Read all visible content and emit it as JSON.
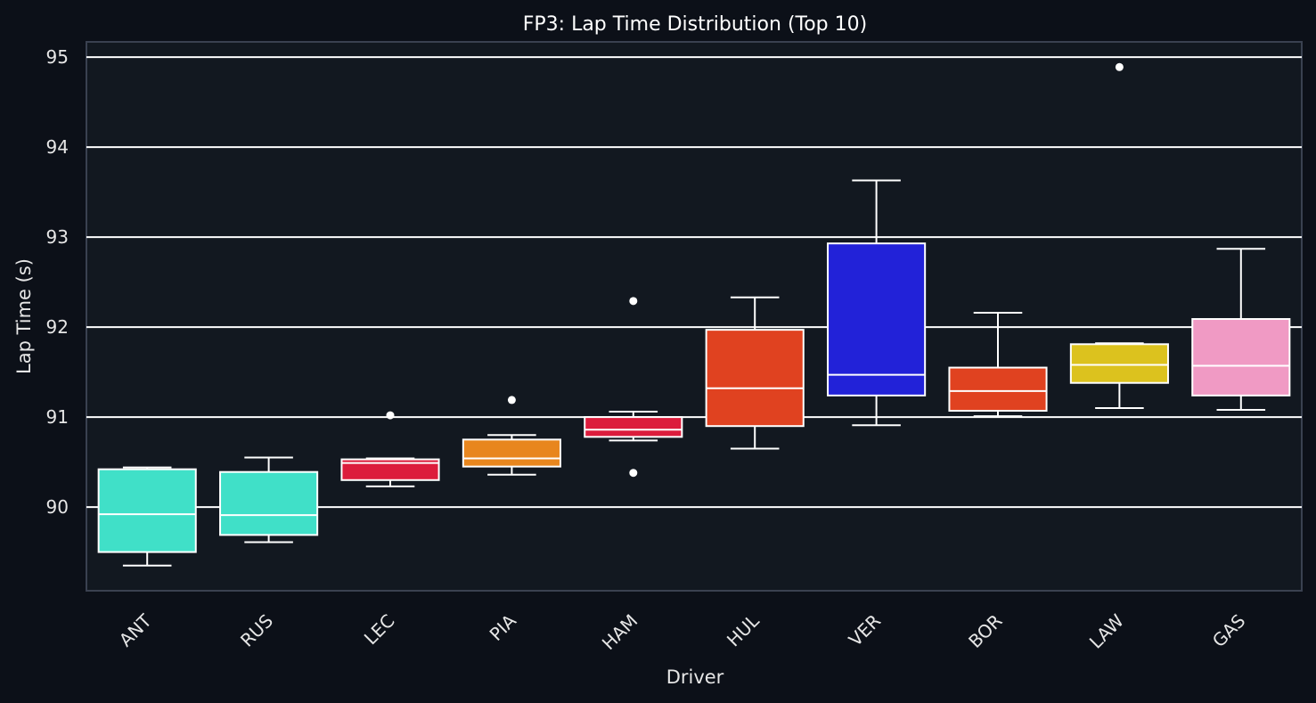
{
  "chart_data": {
    "type": "boxplot",
    "title": "FP3: Lap Time Distribution (Top 10)",
    "xlabel": "Driver",
    "ylabel": "Lap Time (s)",
    "ylim": [
      89.07,
      95.17
    ],
    "yticks": [
      90,
      91,
      92,
      93,
      94,
      95
    ],
    "grid": "horizontal",
    "categories": [
      "ANT",
      "RUS",
      "LEC",
      "PIA",
      "HAM",
      "HUL",
      "VER",
      "BOR",
      "LAW",
      "GAS"
    ],
    "boxes": [
      {
        "driver": "ANT",
        "color": "#40e0c8",
        "whisker_low": 89.35,
        "q1": 89.5,
        "median": 89.92,
        "q3": 90.42,
        "whisker_high": 90.44,
        "fliers": []
      },
      {
        "driver": "RUS",
        "color": "#40e0c8",
        "whisker_low": 89.61,
        "q1": 89.69,
        "median": 89.91,
        "q3": 90.39,
        "whisker_high": 90.55,
        "fliers": []
      },
      {
        "driver": "LEC",
        "color": "#dc1c3c",
        "whisker_low": 90.23,
        "q1": 90.3,
        "median": 90.49,
        "q3": 90.53,
        "whisker_high": 90.54,
        "fliers": [
          91.02
        ]
      },
      {
        "driver": "PIA",
        "color": "#e8861e",
        "whisker_low": 90.36,
        "q1": 90.45,
        "median": 90.54,
        "q3": 90.75,
        "whisker_high": 90.8,
        "fliers": [
          91.19
        ]
      },
      {
        "driver": "HAM",
        "color": "#dc1c3c",
        "whisker_low": 90.74,
        "q1": 90.78,
        "median": 90.86,
        "q3": 91.0,
        "whisker_high": 91.06,
        "fliers": [
          92.29,
          90.38
        ]
      },
      {
        "driver": "HUL",
        "color": "#e04220",
        "whisker_low": 90.65,
        "q1": 90.9,
        "median": 91.32,
        "q3": 91.97,
        "whisker_high": 92.33,
        "fliers": []
      },
      {
        "driver": "VER",
        "color": "#2222d8",
        "whisker_low": 90.91,
        "q1": 91.24,
        "median": 91.47,
        "q3": 92.93,
        "whisker_high": 93.63,
        "fliers": []
      },
      {
        "driver": "BOR",
        "color": "#e04220",
        "whisker_low": 91.01,
        "q1": 91.07,
        "median": 91.29,
        "q3": 91.55,
        "whisker_high": 92.16,
        "fliers": []
      },
      {
        "driver": "LAW",
        "color": "#dcc21e",
        "whisker_low": 91.1,
        "q1": 91.38,
        "median": 91.58,
        "q3": 91.81,
        "whisker_high": 91.82,
        "fliers": [
          94.89
        ]
      },
      {
        "driver": "GAS",
        "color": "#f09ac4",
        "whisker_low": 91.08,
        "q1": 91.24,
        "median": 91.57,
        "q3": 92.09,
        "whisker_high": 92.87,
        "fliers": []
      }
    ]
  }
}
